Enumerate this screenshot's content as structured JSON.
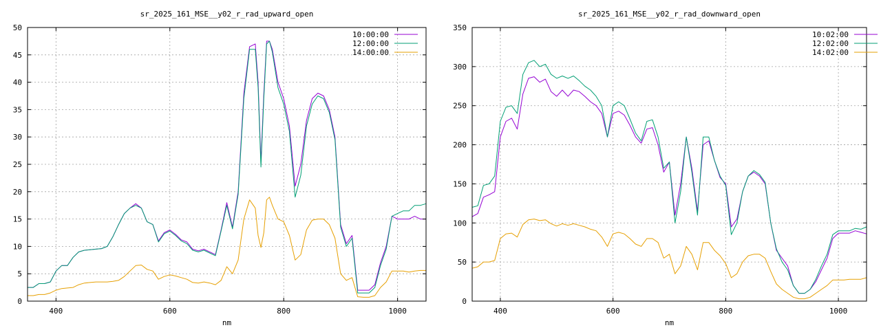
{
  "chart_data": [
    {
      "type": "line",
      "title": "sr_2025_161_MSE__y02_r_rad_upward_open",
      "xlabel": "nm",
      "ylabel": "",
      "xlim": [
        350,
        1050
      ],
      "ylim": [
        0,
        50
      ],
      "xticks": [
        400,
        600,
        800,
        1000
      ],
      "yticks": [
        0,
        5,
        10,
        15,
        20,
        25,
        30,
        35,
        40,
        45,
        50
      ],
      "grid": true,
      "legend_position": "top-right",
      "legend": [
        "10:00:00",
        "12:00:00",
        "14:00:00"
      ],
      "colors": [
        "#9400d3",
        "#009e73",
        "#e69f00"
      ],
      "x": [
        350,
        360,
        370,
        380,
        390,
        400,
        410,
        420,
        430,
        440,
        450,
        460,
        470,
        480,
        490,
        500,
        510,
        520,
        530,
        540,
        550,
        560,
        570,
        580,
        590,
        600,
        610,
        620,
        630,
        640,
        650,
        660,
        670,
        680,
        690,
        700,
        710,
        720,
        730,
        740,
        750,
        755,
        760,
        765,
        770,
        775,
        780,
        790,
        800,
        810,
        820,
        830,
        840,
        850,
        860,
        870,
        880,
        890,
        900,
        910,
        920,
        930,
        940,
        950,
        960,
        970,
        980,
        990,
        1000,
        1010,
        1020,
        1030,
        1040,
        1050
      ],
      "series": [
        {
          "name": "10:00:00",
          "values": [
            2.5,
            2.5,
            3.2,
            3.2,
            3.5,
            5.5,
            6.5,
            6.5,
            8,
            9,
            9.3,
            9.4,
            9.5,
            9.6,
            10,
            11.8,
            14,
            16,
            17,
            17.8,
            17,
            14.5,
            14,
            11,
            12.5,
            13,
            12.2,
            11.2,
            10.8,
            9.5,
            9.2,
            9.5,
            9,
            8.5,
            13,
            18,
            13.5,
            20,
            38,
            46.5,
            47,
            40,
            25.5,
            38,
            47.5,
            47.5,
            46,
            40,
            37,
            32,
            21,
            25,
            33,
            37,
            38,
            37.5,
            35,
            30,
            14,
            10.5,
            12,
            2,
            2,
            2,
            3,
            7,
            10,
            15.5,
            15,
            15,
            15,
            15.5,
            15,
            15
          ]
        },
        {
          "name": "12:00:00",
          "values": [
            2.5,
            2.5,
            3.2,
            3.2,
            3.5,
            5.5,
            6.5,
            6.5,
            8,
            9,
            9.3,
            9.4,
            9.5,
            9.6,
            10,
            11.8,
            14,
            16,
            17,
            17.5,
            17,
            14.5,
            14,
            10.8,
            12.3,
            12.8,
            12,
            11,
            10.5,
            9.3,
            9,
            9.3,
            8.8,
            8.3,
            12.8,
            17.5,
            13.2,
            19.5,
            37,
            46,
            46,
            39,
            24.5,
            37,
            47,
            47.5,
            45.5,
            39,
            36,
            31,
            19,
            23,
            32,
            36,
            37.5,
            37,
            34.5,
            29.5,
            13.5,
            10,
            11.5,
            1.5,
            1.5,
            1.5,
            2.5,
            6.5,
            9.5,
            15.5,
            16,
            16.5,
            16.5,
            17.5,
            17.5,
            17.8
          ]
        },
        {
          "name": "14:00:00",
          "values": [
            1,
            1,
            1.2,
            1.2,
            1.5,
            2,
            2.3,
            2.4,
            2.5,
            3,
            3.3,
            3.4,
            3.5,
            3.5,
            3.5,
            3.6,
            3.8,
            4.5,
            5.5,
            6.5,
            6.6,
            5.8,
            5.5,
            4,
            4.5,
            4.8,
            4.6,
            4.3,
            4,
            3.4,
            3.3,
            3.5,
            3.3,
            3,
            3.8,
            6.3,
            5,
            7.5,
            15,
            18.5,
            17,
            12,
            9.8,
            12.5,
            18.5,
            19,
            17.5,
            15,
            14.5,
            12,
            7.5,
            8.5,
            13,
            14.8,
            15,
            15,
            14,
            11.5,
            5,
            3.8,
            4.3,
            0.8,
            0.7,
            0.7,
            1,
            2.5,
            3.5,
            5.5,
            5.5,
            5.5,
            5.3,
            5.5,
            5.6,
            5.6
          ]
        }
      ]
    },
    {
      "type": "line",
      "title": "sr_2025_161_MSE__y02_r_rad_downward_open",
      "xlabel": "nm",
      "ylabel": "",
      "xlim": [
        350,
        1050
      ],
      "ylim": [
        0,
        350
      ],
      "xticks": [
        400,
        600,
        800,
        1000
      ],
      "yticks": [
        0,
        50,
        100,
        150,
        200,
        250,
        300,
        350
      ],
      "grid": true,
      "legend_position": "top-right",
      "legend": [
        "10:02:00",
        "12:02:00",
        "14:02:00"
      ],
      "colors": [
        "#9400d3",
        "#009e73",
        "#e69f00"
      ],
      "x": [
        350,
        360,
        370,
        380,
        390,
        400,
        410,
        420,
        430,
        440,
        450,
        460,
        470,
        480,
        490,
        500,
        510,
        520,
        530,
        540,
        550,
        560,
        570,
        580,
        590,
        600,
        610,
        620,
        630,
        640,
        650,
        660,
        670,
        680,
        690,
        700,
        710,
        720,
        730,
        740,
        750,
        760,
        770,
        780,
        790,
        800,
        810,
        820,
        830,
        840,
        850,
        860,
        870,
        880,
        890,
        900,
        910,
        920,
        930,
        940,
        950,
        960,
        970,
        980,
        990,
        1000,
        1010,
        1020,
        1030,
        1040,
        1050
      ],
      "series": [
        {
          "name": "10:02:00",
          "values": [
            108,
            112,
            133,
            136,
            140,
            210,
            230,
            234,
            220,
            265,
            285,
            287,
            280,
            284,
            268,
            262,
            270,
            262,
            270,
            268,
            262,
            255,
            250,
            240,
            210,
            240,
            243,
            238,
            225,
            210,
            202,
            220,
            222,
            200,
            165,
            178,
            110,
            150,
            210,
            170,
            115,
            200,
            205,
            180,
            158,
            150,
            95,
            105,
            140,
            160,
            165,
            160,
            150,
            100,
            65,
            55,
            45,
            20,
            10,
            10,
            15,
            25,
            40,
            55,
            80,
            87,
            87,
            87,
            90,
            88,
            86
          ]
        },
        {
          "name": "12:02:00",
          "values": [
            120,
            122,
            148,
            150,
            160,
            230,
            248,
            250,
            240,
            290,
            305,
            308,
            300,
            303,
            290,
            285,
            288,
            285,
            288,
            282,
            275,
            270,
            262,
            250,
            210,
            250,
            255,
            250,
            233,
            215,
            205,
            230,
            232,
            210,
            170,
            178,
            100,
            140,
            210,
            165,
            110,
            210,
            210,
            180,
            160,
            148,
            85,
            100,
            140,
            160,
            167,
            162,
            152,
            100,
            67,
            50,
            40,
            20,
            10,
            10,
            15,
            28,
            45,
            60,
            85,
            90,
            90,
            90,
            93,
            92,
            95
          ]
        },
        {
          "name": "14:02:00",
          "values": [
            42,
            44,
            50,
            50,
            52,
            80,
            86,
            87,
            82,
            98,
            104,
            105,
            103,
            104,
            99,
            96,
            99,
            97,
            99,
            97,
            95,
            92,
            90,
            82,
            70,
            86,
            88,
            86,
            80,
            73,
            70,
            80,
            80,
            75,
            55,
            60,
            35,
            45,
            70,
            60,
            40,
            75,
            75,
            65,
            58,
            48,
            30,
            35,
            50,
            58,
            60,
            60,
            55,
            38,
            22,
            15,
            10,
            5,
            3,
            3,
            5,
            10,
            15,
            20,
            27,
            27,
            27,
            28,
            28,
            28,
            30
          ]
        }
      ]
    }
  ]
}
